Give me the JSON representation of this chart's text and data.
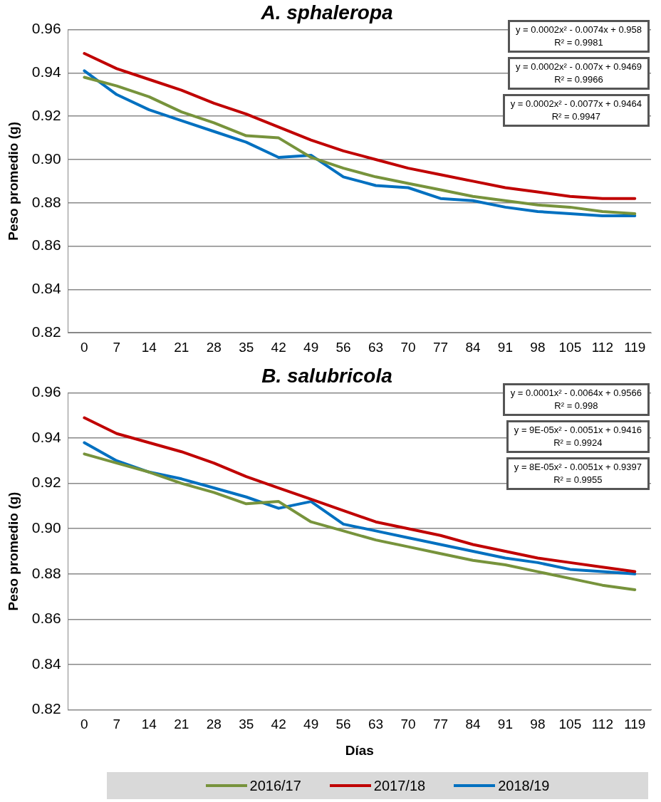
{
  "chart_data": [
    {
      "type": "line",
      "title": "A. sphaleropa",
      "ylabel": "Peso promedio (g)",
      "categories": [
        "0",
        "7",
        "14",
        "21",
        "28",
        "35",
        "42",
        "49",
        "56",
        "63",
        "70",
        "77",
        "84",
        "91",
        "98",
        "105",
        "112",
        "119"
      ],
      "series": [
        {
          "color": "#77933c",
          "values": [
            0.938,
            0.934,
            0.929,
            0.922,
            0.917,
            0.911,
            0.91,
            0.901,
            0.896,
            0.892,
            0.889,
            0.886,
            0.883,
            0.881,
            0.879,
            0.878,
            0.876,
            0.875
          ]
        },
        {
          "color": "#c00000",
          "values": [
            0.949,
            0.942,
            0.937,
            0.932,
            0.926,
            0.921,
            0.915,
            0.909,
            0.904,
            0.9,
            0.896,
            0.893,
            0.89,
            0.887,
            0.885,
            0.883,
            0.882,
            0.882
          ]
        },
        {
          "color": "#0070c0",
          "values": [
            0.941,
            0.93,
            0.923,
            0.918,
            0.913,
            0.908,
            0.901,
            0.902,
            0.892,
            0.888,
            0.887,
            0.882,
            0.881,
            0.878,
            0.876,
            0.875,
            0.874,
            0.874
          ]
        }
      ],
      "ylim": [
        0.82,
        0.96
      ],
      "yticks": [
        {
          "value": 0.82,
          "label": "0.82"
        },
        {
          "value": 0.84,
          "label": "0.84"
        },
        {
          "value": 0.86,
          "label": "0.86"
        },
        {
          "value": 0.88,
          "label": "0.88"
        },
        {
          "value": 0.9,
          "label": "0.90"
        },
        {
          "value": 0.92,
          "label": "0.92"
        },
        {
          "value": 0.94,
          "label": "0.94"
        },
        {
          "value": 0.96,
          "label": "0.96"
        }
      ],
      "grid": "y",
      "marker": "none",
      "line_style": "solid",
      "legend": false,
      "annotations": [
        "y = 0.0002x² - 0.0074x + 0.958\nR² = 0.9981",
        "y = 0.0002x² - 0.007x + 0.9469\nR² = 0.9966",
        "y = 0.0002x² - 0.0077x + 0.9464\nR² = 0.9947"
      ]
    },
    {
      "type": "line",
      "title": "B. salubricola",
      "xlabel": "Días",
      "ylabel": "Peso promedio (g)",
      "categories": [
        "0",
        "7",
        "14",
        "21",
        "28",
        "35",
        "42",
        "49",
        "56",
        "63",
        "70",
        "77",
        "84",
        "91",
        "98",
        "105",
        "112",
        "119"
      ],
      "series": [
        {
          "name": "2016/17",
          "color": "#77933c",
          "values": [
            0.933,
            0.929,
            0.925,
            0.92,
            0.916,
            0.911,
            0.912,
            0.903,
            0.899,
            0.895,
            0.892,
            0.889,
            0.886,
            0.884,
            0.881,
            0.878,
            0.875,
            0.873
          ]
        },
        {
          "name": "2017/18",
          "color": "#c00000",
          "values": [
            0.949,
            0.942,
            0.938,
            0.934,
            0.929,
            0.923,
            0.918,
            0.913,
            0.908,
            0.903,
            0.9,
            0.897,
            0.893,
            0.89,
            0.887,
            0.885,
            0.883,
            0.881
          ]
        },
        {
          "name": "2018/19",
          "color": "#0070c0",
          "values": [
            0.938,
            0.93,
            0.925,
            0.922,
            0.918,
            0.914,
            0.909,
            0.912,
            0.902,
            0.899,
            0.896,
            0.893,
            0.89,
            0.887,
            0.885,
            0.882,
            0.881,
            0.88
          ]
        }
      ],
      "ylim": [
        0.82,
        0.96
      ],
      "yticks": [
        {
          "value": 0.82,
          "label": "0.82"
        },
        {
          "value": 0.84,
          "label": "0.84"
        },
        {
          "value": 0.86,
          "label": "0.86"
        },
        {
          "value": 0.88,
          "label": "0.88"
        },
        {
          "value": 0.9,
          "label": "0.90"
        },
        {
          "value": 0.92,
          "label": "0.92"
        },
        {
          "value": 0.94,
          "label": "0.94"
        },
        {
          "value": 0.96,
          "label": "0.96"
        }
      ],
      "grid": "y",
      "marker": "none",
      "line_style": "solid",
      "legend": "bottom",
      "annotations": [
        "y = 0.0001x² - 0.0064x + 0.9566\nR² = 0.998",
        "y = 9E-05x² - 0.0051x + 0.9416\nR² = 0.9924",
        "y = 8E-05x² - 0.0051x + 0.9397\nR² = 0.9955"
      ]
    }
  ]
}
